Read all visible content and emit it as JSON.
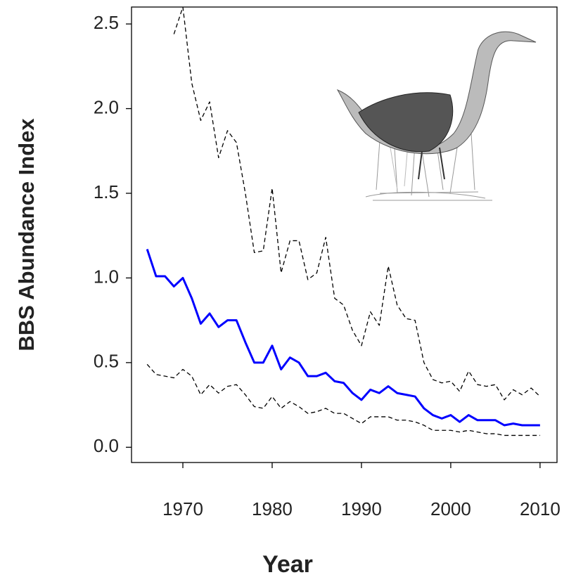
{
  "chart_data": {
    "type": "line",
    "xlabel": "Year",
    "ylabel": "BBS Abundance Index",
    "x": [
      1966,
      1967,
      1968,
      1969,
      1970,
      1971,
      1972,
      1973,
      1974,
      1975,
      1976,
      1977,
      1978,
      1979,
      1980,
      1981,
      1982,
      1983,
      1984,
      1985,
      1986,
      1987,
      1988,
      1989,
      1990,
      1991,
      1992,
      1993,
      1994,
      1995,
      1996,
      1997,
      1998,
      1999,
      2000,
      2001,
      2002,
      2003,
      2004,
      2005,
      2006,
      2007,
      2008,
      2009,
      2010
    ],
    "series": [
      {
        "color": "#0000ff",
        "dashed": false,
        "width": 3,
        "values": [
          1.17,
          1.01,
          1.01,
          0.95,
          1.0,
          0.88,
          0.73,
          0.79,
          0.71,
          0.75,
          0.75,
          0.62,
          0.5,
          0.5,
          0.6,
          0.46,
          0.53,
          0.5,
          0.42,
          0.42,
          0.44,
          0.39,
          0.38,
          0.32,
          0.28,
          0.34,
          0.32,
          0.36,
          0.32,
          0.31,
          0.3,
          0.23,
          0.19,
          0.17,
          0.19,
          0.15,
          0.19,
          0.16,
          0.16,
          0.16,
          0.13,
          0.14,
          0.13,
          0.13,
          0.13
        ]
      },
      {
        "color": "#000000",
        "dashed": true,
        "width": 1.3,
        "values": [
          null,
          null,
          null,
          2.44,
          2.6,
          2.15,
          1.93,
          2.04,
          1.71,
          1.87,
          1.8,
          1.5,
          1.15,
          1.16,
          1.53,
          1.03,
          1.22,
          1.22,
          0.99,
          1.03,
          1.24,
          0.88,
          0.84,
          0.69,
          0.6,
          0.8,
          0.72,
          1.07,
          0.84,
          0.76,
          0.75,
          0.5,
          0.4,
          0.38,
          0.39,
          0.33,
          0.45,
          0.37,
          0.36,
          0.37,
          0.28,
          0.34,
          0.31,
          0.35,
          0.3
        ]
      },
      {
        "color": "#000000",
        "dashed": true,
        "width": 1.3,
        "values": [
          0.49,
          0.43,
          0.42,
          0.41,
          0.46,
          0.42,
          0.31,
          0.37,
          0.32,
          0.36,
          0.37,
          0.31,
          0.24,
          0.23,
          0.3,
          0.23,
          0.27,
          0.24,
          0.2,
          0.21,
          0.23,
          0.2,
          0.2,
          0.17,
          0.14,
          0.18,
          0.18,
          0.18,
          0.16,
          0.16,
          0.15,
          0.13,
          0.1,
          0.1,
          0.1,
          0.09,
          0.1,
          0.09,
          0.08,
          0.08,
          0.07,
          0.07,
          0.07,
          0.07,
          0.07
        ]
      }
    ],
    "xlim": [
      1964.25,
      2011.9
    ],
    "ylim": [
      -0.09,
      2.6
    ],
    "xticks": [
      1970,
      1980,
      1990,
      2000,
      2010
    ],
    "yticks": [
      {
        "value": 0,
        "label": "0.0"
      },
      0.5,
      {
        "value": 1,
        "label": "1.0"
      },
      1.5,
      {
        "value": 2,
        "label": "2.0"
      },
      2.5
    ],
    "grid": false
  }
}
